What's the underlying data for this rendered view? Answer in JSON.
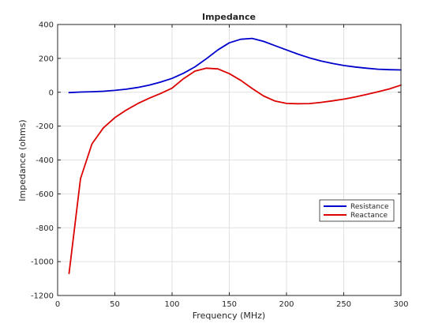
{
  "chart_data": {
    "type": "line",
    "title": "Impedance",
    "xlabel": "Frequency (MHz)",
    "ylabel": "Impedance (ohms)",
    "xlim": [
      0,
      300
    ],
    "ylim": [
      -1200,
      400
    ],
    "xticks": [
      0,
      50,
      100,
      150,
      200,
      250,
      300
    ],
    "yticks": [
      -1200,
      -1000,
      -800,
      -600,
      -400,
      -200,
      0,
      200,
      400
    ],
    "xtick_labels": [
      "0",
      "50",
      "100",
      "150",
      "200",
      "250",
      "300"
    ],
    "ytick_labels": [
      "-1200",
      "-1000",
      "-800",
      "-600",
      "-400",
      "-200",
      "0",
      "200",
      "400"
    ],
    "grid": true,
    "legend_position": "lower-right",
    "x": [
      10,
      20,
      30,
      40,
      50,
      60,
      70,
      80,
      90,
      100,
      110,
      120,
      130,
      140,
      150,
      160,
      170,
      180,
      190,
      200,
      210,
      220,
      230,
      240,
      250,
      260,
      270,
      280,
      290,
      300
    ],
    "series": [
      {
        "name": "Resistance",
        "color": "#0000cd",
        "values": [
          -2,
          1,
          3,
          6,
          11,
          18,
          28,
          42,
          60,
          82,
          112,
          150,
          198,
          250,
          292,
          313,
          318,
          300,
          275,
          250,
          225,
          203,
          185,
          170,
          158,
          149,
          142,
          136,
          133,
          132
        ]
      },
      {
        "name": "Reactance",
        "color": "#dd0000",
        "values": [
          -1070,
          -510,
          -305,
          -210,
          -150,
          -105,
          -67,
          -35,
          -7,
          24,
          80,
          125,
          142,
          138,
          110,
          70,
          22,
          -22,
          -52,
          -66,
          -68,
          -67,
          -60,
          -51,
          -41,
          -28,
          -13,
          3,
          20,
          42
        ]
      }
    ]
  }
}
